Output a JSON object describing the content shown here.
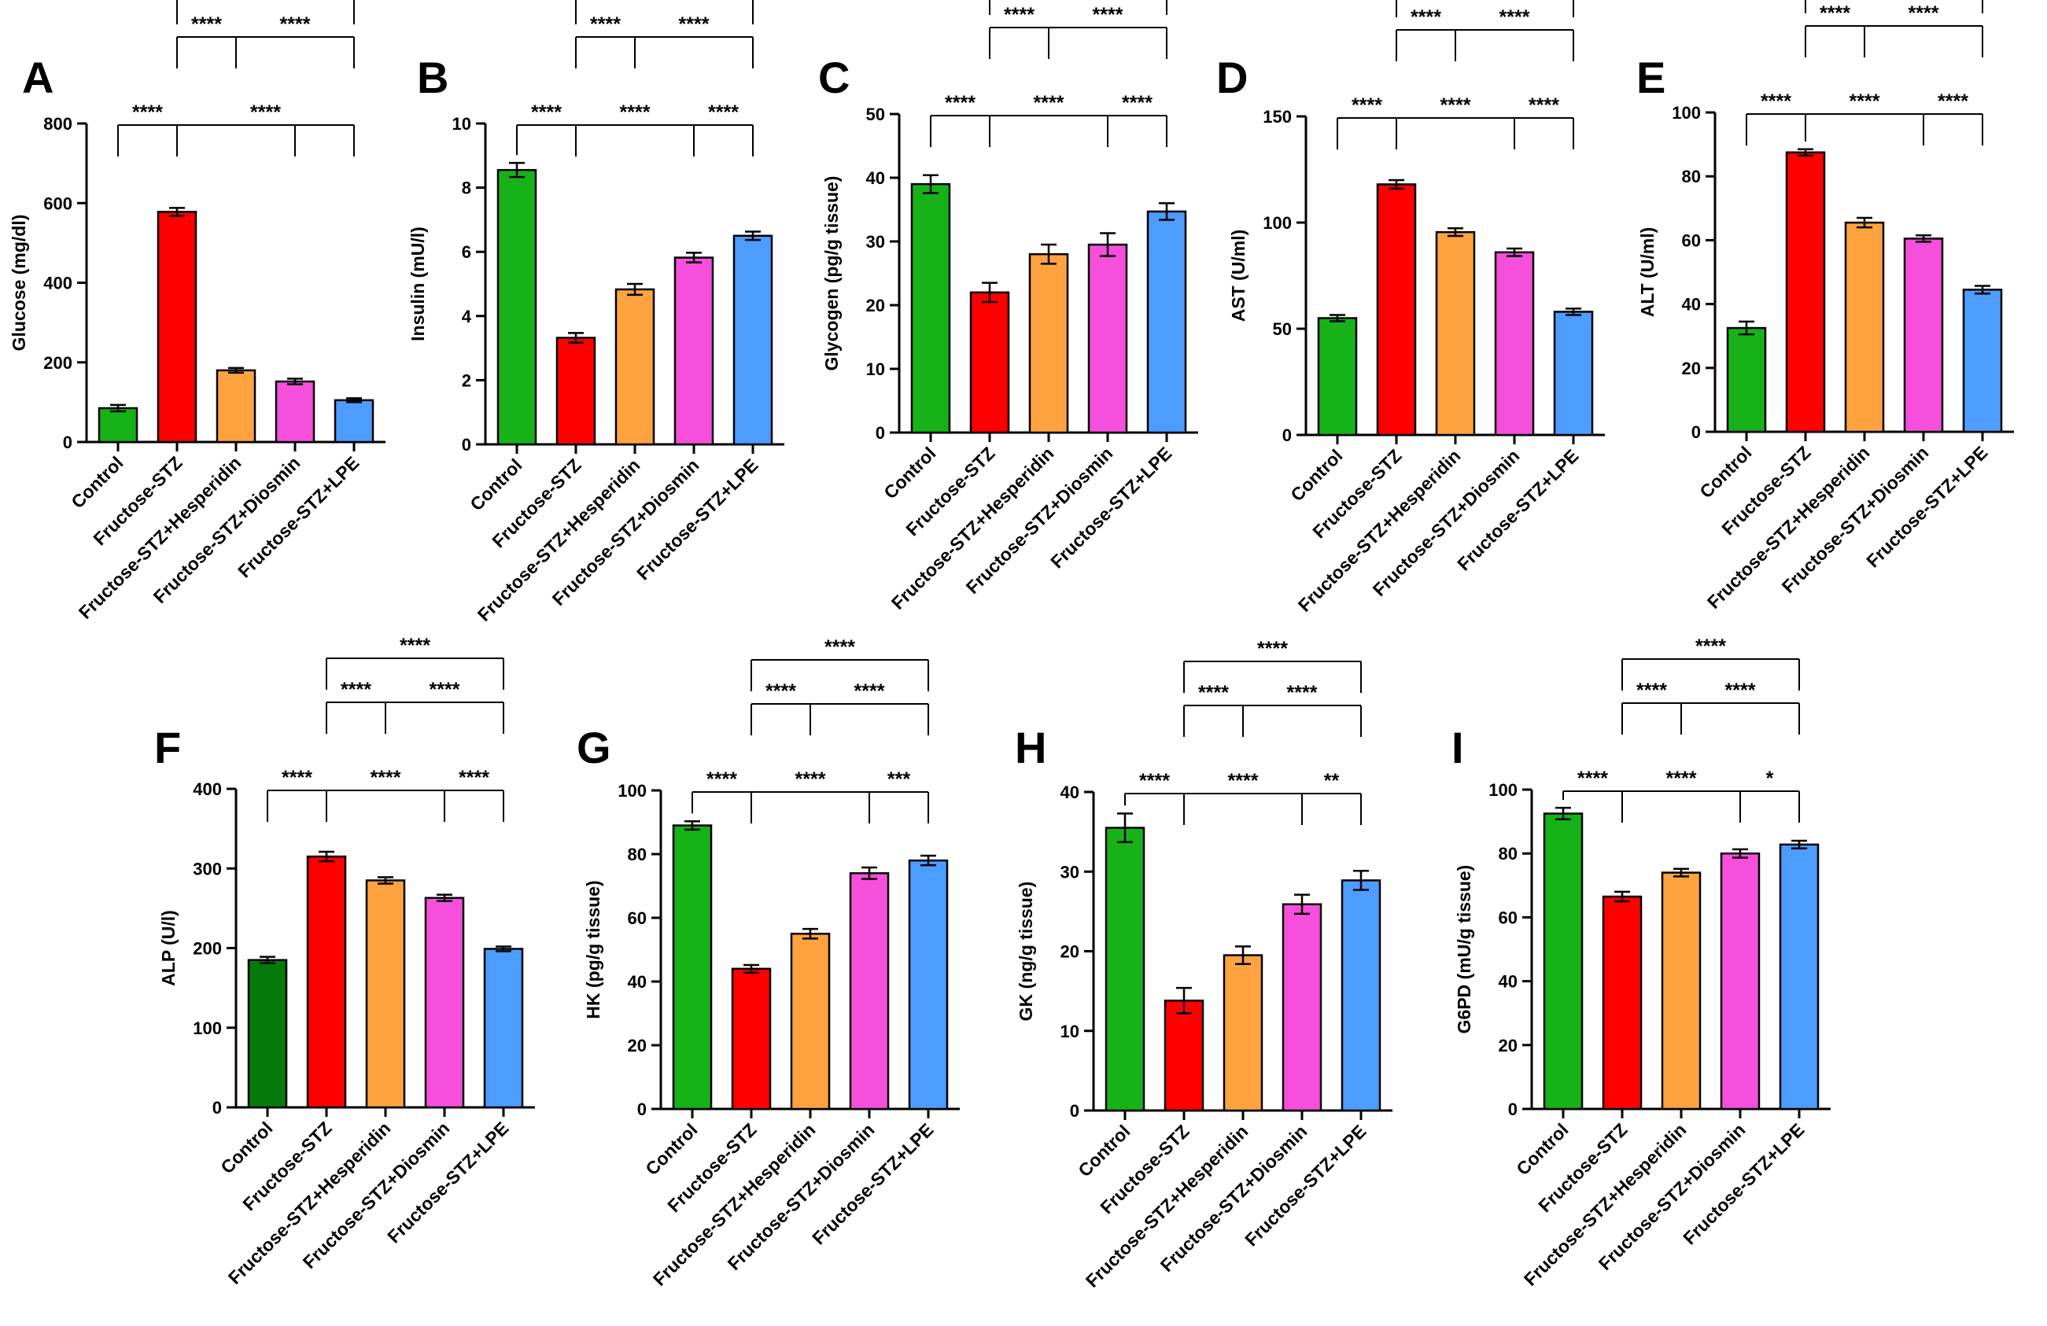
{
  "figure": {
    "title": ""
  },
  "colors": {
    "Control": "#17b217",
    "Control_dark": "#067a0a",
    "Fructose-STZ": "#ff0000",
    "Fructose-STZ+Hesperidin": "#ffa340",
    "Fructose-STZ+Diosmin": "#f54fdc",
    "Fructose-STZ+LPE": "#4d9cff"
  },
  "chart_data": [
    {
      "panel": "A",
      "type": "bar",
      "title": "",
      "ylabel": "Glucose (mg/dl)",
      "ylim": [
        0,
        800
      ],
      "yticks": [
        "0",
        "200",
        "400",
        "600",
        "800"
      ],
      "categories": [
        "Control",
        "Fructose-STZ",
        "Fructose-STZ+Hesperidin",
        "Fructose-STZ+Diosmin",
        "Fructose-STZ+LPE"
      ],
      "values": [
        85,
        578,
        180,
        152,
        105
      ],
      "errors": [
        8,
        10,
        6,
        7,
        5
      ],
      "significance": [
        {
          "from": 1,
          "to": [
            0
          ],
          "label": "****"
        },
        {
          "from": 1,
          "to": [
            3,
            4
          ],
          "label": "****"
        },
        {
          "from": 1,
          "to": [
            2
          ],
          "label": "****"
        },
        {
          "from": 2,
          "to": [
            4
          ],
          "label": "****"
        },
        {
          "from": 1,
          "to": [
            4
          ],
          "label": "****"
        }
      ]
    },
    {
      "panel": "B",
      "type": "bar",
      "title": "",
      "ylabel": "Insulin (mU/l)",
      "ylim": [
        0,
        10
      ],
      "yticks": [
        "0",
        "2",
        "4",
        "6",
        "8",
        "10"
      ],
      "categories": [
        "Control",
        "Fructose-STZ",
        "Fructose-STZ+Hesperidin",
        "Fructose-STZ+Diosmin",
        "Fructose-STZ+LPE"
      ],
      "values": [
        8.55,
        3.32,
        4.83,
        5.82,
        6.5
      ],
      "errors": [
        0.22,
        0.15,
        0.17,
        0.15,
        0.13
      ],
      "significance": [
        {
          "from": 1,
          "to": [
            0
          ],
          "label": "****"
        },
        {
          "from": 1,
          "to": [
            3
          ],
          "label": "****"
        },
        {
          "from": 3,
          "to": [
            4
          ],
          "label": "****"
        },
        {
          "from": 1,
          "to": [
            2
          ],
          "label": "****"
        },
        {
          "from": 2,
          "to": [
            4
          ],
          "label": "****"
        },
        {
          "from": 1,
          "to": [
            4
          ],
          "label": "****"
        }
      ]
    },
    {
      "panel": "C",
      "type": "bar",
      "title": "",
      "ylabel": "Glycogen (pg/g tissue)",
      "ylim": [
        0,
        50
      ],
      "yticks": [
        "0",
        "10",
        "20",
        "30",
        "40",
        "50"
      ],
      "categories": [
        "Control",
        "Fructose-STZ",
        "Fructose-STZ+Hesperidin",
        "Fructose-STZ+Diosmin",
        "Fructose-STZ+LPE"
      ],
      "values": [
        39,
        22,
        28,
        29.5,
        34.7
      ],
      "errors": [
        1.4,
        1.5,
        1.5,
        1.8,
        1.3
      ],
      "significance": [
        {
          "from": 1,
          "to": [
            0
          ],
          "label": "****"
        },
        {
          "from": 1,
          "to": [
            3
          ],
          "label": "****"
        },
        {
          "from": 3,
          "to": [
            4
          ],
          "label": "****"
        },
        {
          "from": 1,
          "to": [
            2
          ],
          "label": "****"
        },
        {
          "from": 2,
          "to": [
            4
          ],
          "label": "****"
        },
        {
          "from": 1,
          "to": [
            4
          ],
          "label": "****"
        }
      ]
    },
    {
      "panel": "D",
      "type": "bar",
      "title": "",
      "ylabel": "AST (U/ml)",
      "ylim": [
        0,
        150
      ],
      "yticks": [
        "0",
        "50",
        "100",
        "150"
      ],
      "categories": [
        "Control",
        "Fructose-STZ",
        "Fructose-STZ+Hesperidin",
        "Fructose-STZ+Diosmin",
        "Fructose-STZ+LPE"
      ],
      "values": [
        55,
        118,
        95.5,
        86,
        58
      ],
      "errors": [
        1.5,
        2,
        1.8,
        1.8,
        1.5
      ],
      "significance": [
        {
          "from": 1,
          "to": [
            0
          ],
          "label": "****"
        },
        {
          "from": 1,
          "to": [
            3
          ],
          "label": "****"
        },
        {
          "from": 3,
          "to": [
            4
          ],
          "label": "****"
        },
        {
          "from": 1,
          "to": [
            2
          ],
          "label": "****"
        },
        {
          "from": 2,
          "to": [
            4
          ],
          "label": "****"
        },
        {
          "from": 1,
          "to": [
            4
          ],
          "label": "****"
        }
      ]
    },
    {
      "panel": "E",
      "type": "bar",
      "title": "",
      "ylabel": "ALT (U/ml)",
      "ylim": [
        0,
        100
      ],
      "yticks": [
        "0",
        "20",
        "40",
        "60",
        "80",
        "100"
      ],
      "categories": [
        "Control",
        "Fructose-STZ",
        "Fructose-STZ+Hesperidin",
        "Fructose-STZ+Diosmin",
        "Fructose-STZ+LPE"
      ],
      "values": [
        32.5,
        87.5,
        65.5,
        60.5,
        44.5
      ],
      "errors": [
        2,
        1,
        1.5,
        1,
        1.2
      ],
      "significance": [
        {
          "from": 1,
          "to": [
            0
          ],
          "label": "****"
        },
        {
          "from": 1,
          "to": [
            3
          ],
          "label": "****"
        },
        {
          "from": 3,
          "to": [
            4
          ],
          "label": "****"
        },
        {
          "from": 1,
          "to": [
            2
          ],
          "label": "****"
        },
        {
          "from": 2,
          "to": [
            4
          ],
          "label": "****"
        },
        {
          "from": 1,
          "to": [
            4
          ],
          "label": "****"
        }
      ]
    },
    {
      "panel": "F",
      "type": "bar",
      "title": "",
      "ylabel": "ALP (U/l)",
      "ylim": [
        0,
        400
      ],
      "yticks": [
        "0",
        "100",
        "200",
        "300",
        "400"
      ],
      "categories": [
        "Control",
        "Fructose-STZ",
        "Fructose-STZ+Hesperidin",
        "Fructose-STZ+Diosmin",
        "Fructose-STZ+LPE"
      ],
      "values": [
        185,
        315,
        285,
        263,
        199
      ],
      "errors": [
        4,
        6,
        4,
        4,
        3
      ],
      "significance": [
        {
          "from": 1,
          "to": [
            0
          ],
          "label": "****"
        },
        {
          "from": 1,
          "to": [
            3
          ],
          "label": "****"
        },
        {
          "from": 3,
          "to": [
            4
          ],
          "label": "****"
        },
        {
          "from": 1,
          "to": [
            2
          ],
          "label": "****"
        },
        {
          "from": 2,
          "to": [
            4
          ],
          "label": "****"
        },
        {
          "from": 1,
          "to": [
            4
          ],
          "label": "****"
        }
      ]
    },
    {
      "panel": "G",
      "type": "bar",
      "title": "",
      "ylabel": "HK (pg/g tissue)",
      "ylim": [
        0,
        100
      ],
      "yticks": [
        "0",
        "20",
        "40",
        "60",
        "80",
        "100"
      ],
      "categories": [
        "Control",
        "Fructose-STZ",
        "Fructose-STZ+Hesperidin",
        "Fructose-STZ+Diosmin",
        "Fructose-STZ+LPE"
      ],
      "values": [
        89,
        44,
        55,
        74,
        78
      ],
      "errors": [
        1.3,
        1.2,
        1.5,
        1.8,
        1.5
      ],
      "significance": [
        {
          "from": 1,
          "to": [
            0
          ],
          "label": "****"
        },
        {
          "from": 1,
          "to": [
            3
          ],
          "label": "****"
        },
        {
          "from": 3,
          "to": [
            4
          ],
          "label": "***"
        },
        {
          "from": 1,
          "to": [
            2
          ],
          "label": "****"
        },
        {
          "from": 2,
          "to": [
            4
          ],
          "label": "****"
        },
        {
          "from": 1,
          "to": [
            4
          ],
          "label": "****"
        }
      ]
    },
    {
      "panel": "H",
      "type": "bar",
      "title": "",
      "ylabel": "GK (ng/g tissue)",
      "ylim": [
        0,
        40
      ],
      "yticks": [
        "0",
        "10",
        "20",
        "30",
        "40"
      ],
      "categories": [
        "Control",
        "Fructose-STZ",
        "Fructose-STZ+Hesperidin",
        "Fructose-STZ+Diosmin",
        "Fructose-STZ+LPE"
      ],
      "values": [
        35.5,
        13.8,
        19.5,
        25.9,
        28.9
      ],
      "errors": [
        1.8,
        1.6,
        1.1,
        1.2,
        1.2
      ],
      "significance": [
        {
          "from": 1,
          "to": [
            0
          ],
          "label": "****"
        },
        {
          "from": 1,
          "to": [
            3
          ],
          "label": "****"
        },
        {
          "from": 3,
          "to": [
            4
          ],
          "label": "**"
        },
        {
          "from": 1,
          "to": [
            2
          ],
          "label": "****"
        },
        {
          "from": 2,
          "to": [
            4
          ],
          "label": "****"
        },
        {
          "from": 1,
          "to": [
            4
          ],
          "label": "****"
        }
      ]
    },
    {
      "panel": "I",
      "type": "bar",
      "title": "",
      "ylabel": "G6PD (mU/g tissue)",
      "ylim": [
        0,
        100
      ],
      "yticks": [
        "0",
        "20",
        "40",
        "60",
        "80",
        "100"
      ],
      "categories": [
        "Control",
        "Fructose-STZ",
        "Fructose-STZ+Hesperidin",
        "Fructose-STZ+Diosmin",
        "Fructose-STZ+LPE"
      ],
      "values": [
        92.5,
        66.5,
        74,
        80,
        82.8
      ],
      "errors": [
        1.8,
        1.5,
        1.2,
        1.3,
        1.2
      ],
      "significance": [
        {
          "from": 1,
          "to": [
            0
          ],
          "label": "****"
        },
        {
          "from": 1,
          "to": [
            3
          ],
          "label": "****"
        },
        {
          "from": 3,
          "to": [
            4
          ],
          "label": "*"
        },
        {
          "from": 1,
          "to": [
            2
          ],
          "label": "****"
        },
        {
          "from": 2,
          "to": [
            4
          ],
          "label": "****"
        },
        {
          "from": 1,
          "to": [
            4
          ],
          "label": "****"
        }
      ]
    }
  ]
}
